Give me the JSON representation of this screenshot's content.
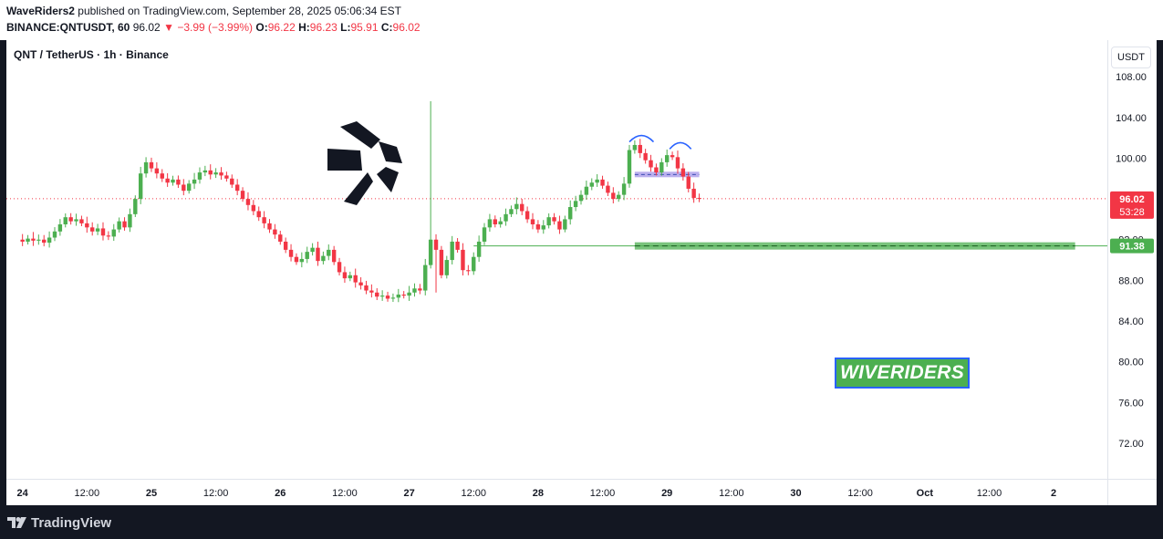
{
  "header": {
    "author": "WaveRiders2",
    "published": "published on TradingView.com, September 28, 2025 05:06:34 EST",
    "symbol_line": "BINANCE:QNTUSDT, 60",
    "last": "96.02",
    "change": "−3.99 (−3.99%)",
    "o_label": "O:",
    "o_value": "96.22",
    "h_label": "H:",
    "h_value": "96.23",
    "l_label": "L:",
    "l_value": "95.91",
    "c_label": "C:",
    "c_value": "96.02"
  },
  "chart": {
    "title": "QNT / TetherUS · 1h · Binance",
    "currency": "USDT",
    "watermark": "WIVERIDERS",
    "price_label": "96.02",
    "countdown": "53:28",
    "support_label": "91.38",
    "partial_tick": "92.00"
  },
  "footer": {
    "brand": "TradingView"
  },
  "colors": {
    "up": "#4caf50",
    "down": "#f23645",
    "support": "#4caf50",
    "neckline": "#b2a6ec",
    "arcs": "#2962ff",
    "accent": "#2962ff"
  },
  "chart_data": {
    "type": "candlestick",
    "title": "QNT / TetherUS · 1h · Binance",
    "y_ticks": [
      "108.00",
      "104.00",
      "100.00",
      "96.00",
      "92.00",
      "88.00",
      "84.00",
      "80.00",
      "76.00",
      "72.00"
    ],
    "y_tick_values": [
      108,
      104,
      100,
      96,
      92,
      88,
      84,
      80,
      76,
      72
    ],
    "x_ticks": [
      "24",
      "12:00",
      "25",
      "12:00",
      "26",
      "12:00",
      "27",
      "12:00",
      "28",
      "12:00",
      "29",
      "12:00",
      "30",
      "12:00",
      "Oct",
      "12:00",
      "2"
    ],
    "ylim": [
      68.5,
      111.6
    ],
    "xlim_hours": [
      -3,
      202
    ],
    "last_price": 96.02,
    "support_price": 91.38,
    "neckline_price": 98.4,
    "close_series": [
      92.0,
      91.8,
      92.1,
      91.9,
      92.0,
      91.7,
      92.2,
      92.8,
      93.5,
      94.2,
      93.8,
      94.0,
      93.6,
      93.2,
      92.8,
      93.1,
      92.4,
      92.3,
      93.0,
      93.8,
      93.2,
      94.5,
      96.0,
      98.5,
      99.6,
      99.0,
      98.5,
      98.0,
      97.6,
      97.9,
      97.4,
      96.8,
      97.5,
      97.9,
      98.6,
      98.8,
      98.4,
      98.6,
      98.3,
      98.0,
      97.4,
      96.8,
      96.0,
      95.4,
      94.8,
      94.2,
      93.6,
      93.0,
      92.5,
      91.8,
      91.0,
      90.3,
      89.8,
      90.1,
      90.8,
      91.2,
      89.9,
      90.4,
      91.0,
      89.8,
      88.8,
      88.2,
      88.5,
      87.8,
      87.5,
      87.0,
      86.8,
      86.4,
      86.5,
      86.2,
      86.3,
      86.6,
      86.5,
      86.8,
      87.2,
      87.0,
      89.5,
      92.0,
      91.0,
      88.5,
      90.0,
      91.8,
      91.0,
      89.0,
      88.9,
      90.3,
      91.8,
      93.2,
      94.0,
      93.5,
      93.8,
      94.5,
      95.0,
      95.5,
      94.8,
      94.0,
      93.5,
      93.0,
      93.4,
      94.2,
      93.8,
      93.0,
      94.0,
      95.2,
      95.8,
      96.4,
      97.2,
      97.6,
      97.9,
      97.3,
      96.6,
      96.0,
      96.4,
      97.5,
      100.8,
      101.3,
      100.5,
      99.8,
      99.1,
      98.6,
      99.6,
      100.3,
      100.1,
      99.0,
      98.2,
      97.0,
      96.1,
      96.02
    ]
  }
}
